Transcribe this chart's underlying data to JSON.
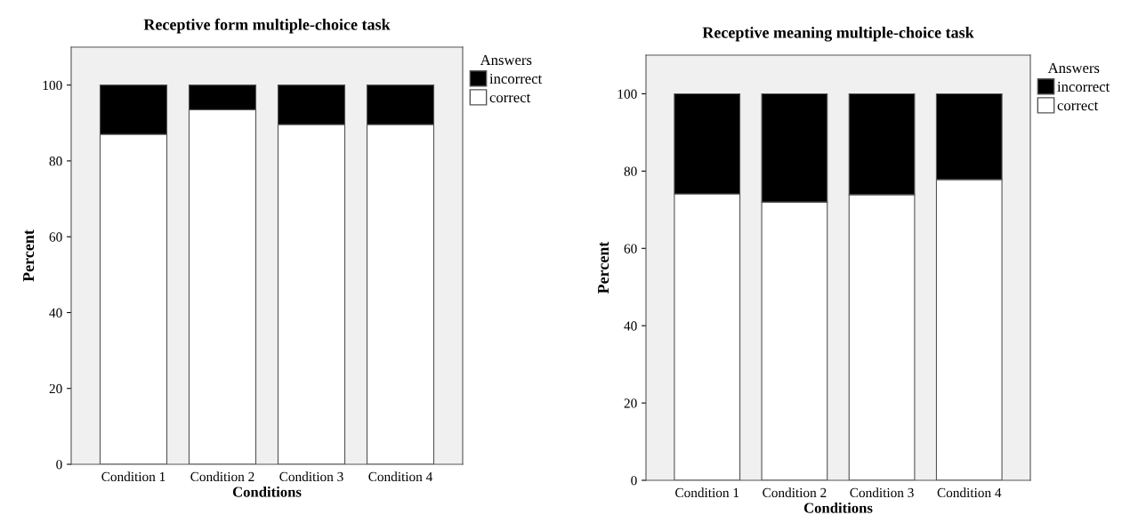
{
  "chart_data": [
    {
      "type": "bar",
      "title": "Receptive form multiple-choice task",
      "xlabel": "Conditions",
      "ylabel": "Percent",
      "legend_title": "Answers",
      "categories": [
        "Condition 1",
        "Condition 2",
        "Condition 3",
        "Condition 4"
      ],
      "stacked": true,
      "series": [
        {
          "name": "correct",
          "color": "#ffffff",
          "values": [
            87.0,
            93.5,
            89.6,
            89.6
          ]
        },
        {
          "name": "incorrect",
          "color": "#000000",
          "values": [
            13.0,
            6.5,
            10.4,
            10.4
          ]
        }
      ],
      "ylim": [
        0,
        110
      ],
      "yticks": [
        0,
        20,
        40,
        60,
        80,
        100
      ],
      "grid": false,
      "legend": "top right"
    },
    {
      "type": "bar",
      "title": "Receptive meaning multiple-choice task",
      "xlabel": "Conditions",
      "ylabel": "Percent",
      "legend_title": "Answers",
      "categories": [
        "Condition 1",
        "Condition 2",
        "Condition 3",
        "Condition 4"
      ],
      "stacked": true,
      "series": [
        {
          "name": "correct",
          "color": "#ffffff",
          "values": [
            74.1,
            72.0,
            73.9,
            77.8
          ]
        },
        {
          "name": "incorrect",
          "color": "#000000",
          "values": [
            25.9,
            28.0,
            26.1,
            22.2
          ]
        }
      ],
      "ylim": [
        0,
        110
      ],
      "yticks": [
        0,
        20,
        40,
        60,
        80,
        100
      ],
      "grid": false,
      "legend": "top right"
    }
  ]
}
